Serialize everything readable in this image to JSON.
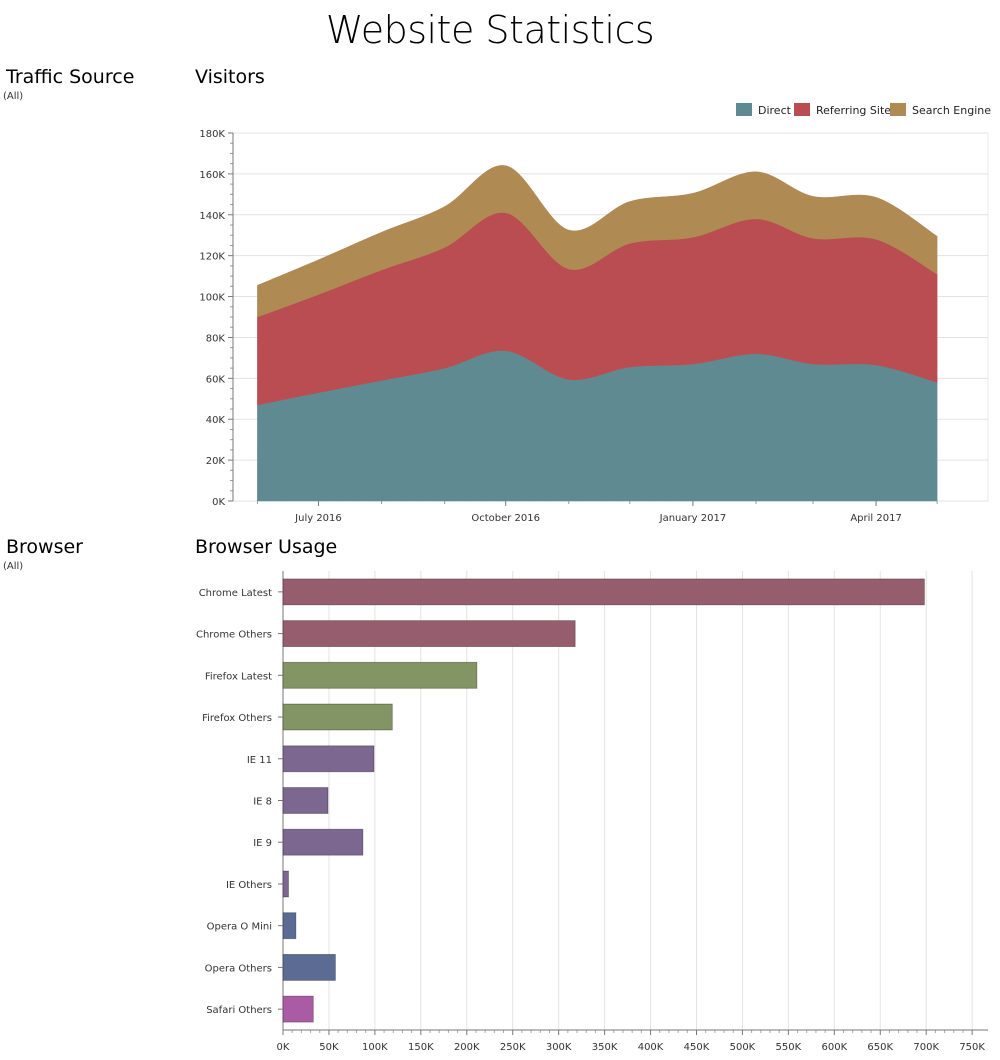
{
  "page": {
    "title": "Website Statistics"
  },
  "filters": [
    {
      "title": "Traffic Source",
      "value": "(All)"
    },
    {
      "title": "Browser",
      "value": "(All)"
    }
  ],
  "chart_data": [
    {
      "type": "area",
      "stacked": true,
      "title": "Visitors",
      "x": [
        "2016-06-01",
        "2016-07-01",
        "2016-08-01",
        "2016-09-01",
        "2016-10-01",
        "2016-11-01",
        "2016-12-01",
        "2017-01-01",
        "2017-02-01",
        "2017-03-01",
        "2017-04-01",
        "2017-05-01"
      ],
      "x_ticks": [
        "July 2016",
        "October 2016",
        "January 2017",
        "April 2017"
      ],
      "y_ticks": [
        "0K",
        "20K",
        "40K",
        "60K",
        "80K",
        "100K",
        "120K",
        "140K",
        "160K",
        "180K"
      ],
      "ylim": [
        0,
        180000
      ],
      "grid": true,
      "legend_position": "top-right",
      "series": [
        {
          "name": "Direct",
          "color": "#5f8a91",
          "values": [
            47000,
            53000,
            59000,
            65000,
            73500,
            59500,
            65500,
            67000,
            72000,
            67000,
            66500,
            58000
          ]
        },
        {
          "name": "Referring Site",
          "color": "#ba4d51",
          "values": [
            43000,
            48000,
            54000,
            59000,
            67500,
            54000,
            60500,
            62000,
            66000,
            61500,
            61500,
            53000
          ]
        },
        {
          "name": "Search Engine",
          "color": "#af8a53",
          "values": [
            15500,
            17000,
            18500,
            20000,
            23000,
            19000,
            20500,
            21500,
            23000,
            20500,
            20500,
            18500
          ]
        }
      ]
    },
    {
      "type": "bar",
      "orientation": "horizontal",
      "title": "Browser Usage",
      "categories": [
        "Chrome Latest",
        "Chrome Others",
        "Firefox Latest",
        "Firefox Others",
        "IE 11",
        "IE 8",
        "IE 9",
        "IE Others",
        "Opera O Mini",
        "Opera Others",
        "Safari Others"
      ],
      "values": [
        698000,
        318000,
        211000,
        119000,
        99000,
        49000,
        87000,
        6000,
        14000,
        57000,
        33000
      ],
      "colors": [
        "#965d6f",
        "#965d6f",
        "#839465",
        "#839465",
        "#7c6790",
        "#7c6790",
        "#7c6790",
        "#7c6790",
        "#5c6b93",
        "#5c6b93",
        "#a95ca3"
      ],
      "x_ticks": [
        "0K",
        "50K",
        "100K",
        "150K",
        "200K",
        "250K",
        "300K",
        "350K",
        "400K",
        "450K",
        "500K",
        "550K",
        "600K",
        "650K",
        "700K",
        "750K"
      ],
      "xlim": [
        0,
        750000
      ],
      "grid": true
    }
  ]
}
